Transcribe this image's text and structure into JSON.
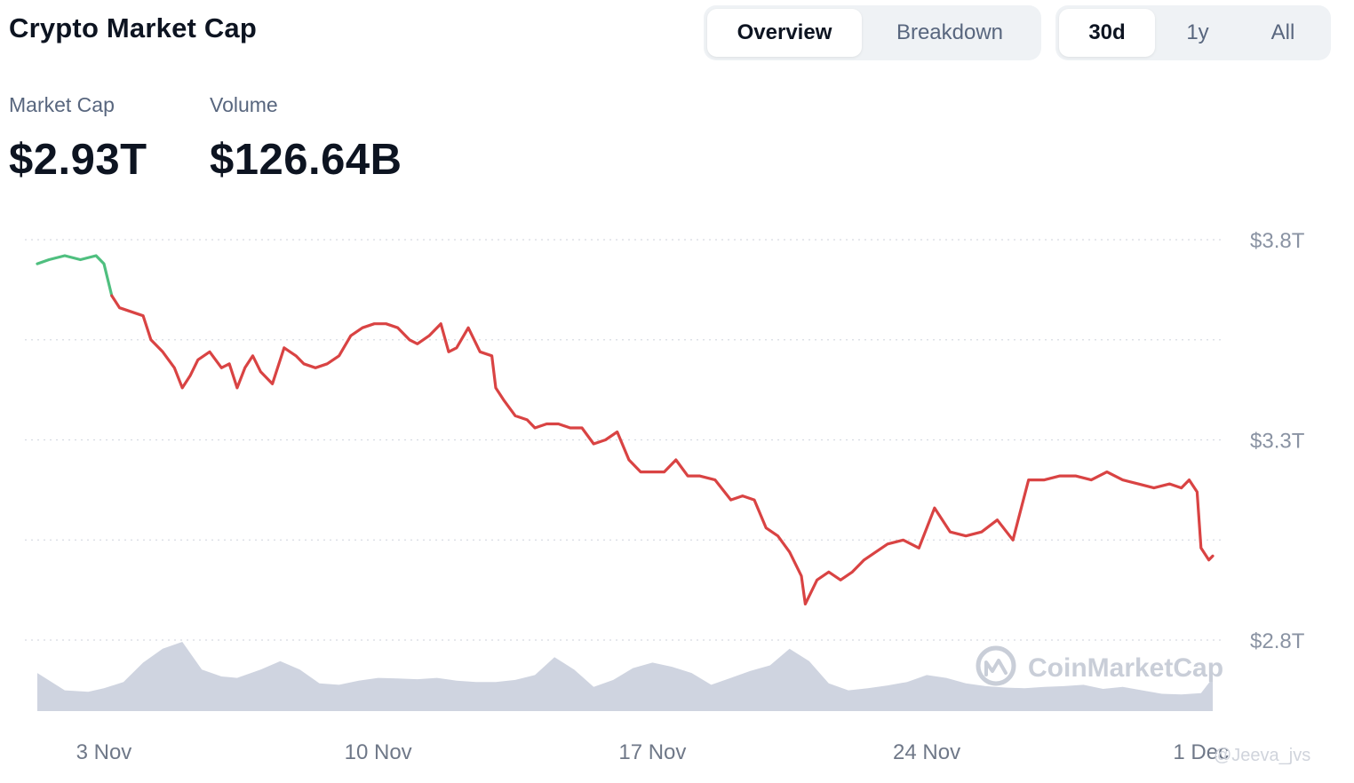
{
  "header": {
    "title": "Crypto Market Cap",
    "view_tabs": [
      "Overview",
      "Breakdown"
    ],
    "active_view": "Overview",
    "range_tabs": [
      "30d",
      "1y",
      "All"
    ],
    "active_range": "30d"
  },
  "stats": {
    "market_cap_label": "Market Cap",
    "market_cap_value": "$2.93T",
    "volume_label": "Volume",
    "volume_value": "$126.64B"
  },
  "watermark": "CoinMarketCap",
  "handle": "@Jeeva_jvs",
  "colors": {
    "up": "#4fbf7f",
    "down": "#d94343",
    "volume": "#cfd4e0",
    "grid": "#d7dbe2"
  },
  "chart_data": {
    "type": "line",
    "ylabel_ticks": [
      "$3.8T",
      "$3.3T",
      "$2.8T"
    ],
    "yticks_values": [
      3.8,
      3.55,
      3.3,
      3.05,
      2.8
    ],
    "ylim": [
      2.8,
      3.8
    ],
    "x_ticks": [
      "3 Nov",
      "10 Nov",
      "17 Nov",
      "24 Nov",
      "1 Dec"
    ],
    "x_ticks_values": [
      3,
      10,
      17,
      24,
      31
    ],
    "xlim": [
      1.3,
      31.3
    ],
    "grid": true,
    "series": [
      {
        "role": "market_cap",
        "unit": "trillion USD",
        "x": [
          1.3,
          1.6,
          2.0,
          2.4,
          2.8,
          3.0,
          3.2,
          3.4,
          3.7,
          4.0,
          4.2,
          4.5,
          4.8,
          5.0,
          5.2,
          5.4,
          5.7,
          6.0,
          6.2,
          6.4,
          6.6,
          6.8,
          7.0,
          7.3,
          7.6,
          7.9,
          8.1,
          8.4,
          8.7,
          9.0,
          9.3,
          9.6,
          9.9,
          10.2,
          10.5,
          10.8,
          11.0,
          11.3,
          11.6,
          11.8,
          12.0,
          12.3,
          12.6,
          12.9,
          13.0,
          13.2,
          13.5,
          13.8,
          14.0,
          14.3,
          14.6,
          14.9,
          15.2,
          15.5,
          15.8,
          16.1,
          16.4,
          16.7,
          17.0,
          17.3,
          17.6,
          17.9,
          18.2,
          18.6,
          19.0,
          19.3,
          19.6,
          19.9,
          20.2,
          20.5,
          20.8,
          20.9,
          21.2,
          21.5,
          21.8,
          22.1,
          22.4,
          22.7,
          23.0,
          23.4,
          23.8,
          24.2,
          24.6,
          25.0,
          25.4,
          25.8,
          26.2,
          26.6,
          27.0,
          27.4,
          27.8,
          28.2,
          28.6,
          29.0,
          29.4,
          29.8,
          30.2,
          30.5,
          30.7,
          30.9,
          31.0,
          31.2,
          31.3
        ],
        "y": [
          3.74,
          3.75,
          3.76,
          3.75,
          3.76,
          3.74,
          3.66,
          3.63,
          3.62,
          3.61,
          3.55,
          3.52,
          3.48,
          3.43,
          3.46,
          3.5,
          3.52,
          3.48,
          3.49,
          3.43,
          3.48,
          3.51,
          3.47,
          3.44,
          3.53,
          3.51,
          3.49,
          3.48,
          3.49,
          3.51,
          3.56,
          3.58,
          3.59,
          3.59,
          3.58,
          3.55,
          3.54,
          3.56,
          3.59,
          3.52,
          3.53,
          3.58,
          3.52,
          3.51,
          3.43,
          3.4,
          3.36,
          3.35,
          3.33,
          3.34,
          3.34,
          3.33,
          3.33,
          3.29,
          3.3,
          3.32,
          3.25,
          3.22,
          3.22,
          3.22,
          3.25,
          3.21,
          3.21,
          3.2,
          3.15,
          3.16,
          3.15,
          3.08,
          3.06,
          3.02,
          2.96,
          2.89,
          2.95,
          2.97,
          2.95,
          2.97,
          3.0,
          3.02,
          3.04,
          3.05,
          3.03,
          3.13,
          3.07,
          3.06,
          3.07,
          3.1,
          3.05,
          3.2,
          3.2,
          3.21,
          3.21,
          3.2,
          3.22,
          3.2,
          3.19,
          3.18,
          3.19,
          3.18,
          3.2,
          3.17,
          3.03,
          3.0,
          3.01
        ]
      },
      {
        "role": "volume",
        "x": [
          1.3,
          2.0,
          2.6,
          3.0,
          3.5,
          4.0,
          4.5,
          5.0,
          5.5,
          6.0,
          6.4,
          7.0,
          7.5,
          8.0,
          8.5,
          9.0,
          9.5,
          10.0,
          10.5,
          11.0,
          11.5,
          12.0,
          12.5,
          13.0,
          13.5,
          14.0,
          14.5,
          15.0,
          15.5,
          16.0,
          16.5,
          17.0,
          17.5,
          18.0,
          18.5,
          19.0,
          19.5,
          20.0,
          20.5,
          21.0,
          21.5,
          22.0,
          22.5,
          23.0,
          23.5,
          24.0,
          24.5,
          25.0,
          25.5,
          26.0,
          26.5,
          27.0,
          27.5,
          28.0,
          28.5,
          29.0,
          29.5,
          30.0,
          30.5,
          31.0,
          31.3
        ],
        "y": [
          0.55,
          0.3,
          0.28,
          0.33,
          0.42,
          0.7,
          0.9,
          1.0,
          0.6,
          0.5,
          0.48,
          0.6,
          0.72,
          0.6,
          0.4,
          0.38,
          0.44,
          0.48,
          0.47,
          0.46,
          0.48,
          0.44,
          0.42,
          0.42,
          0.45,
          0.52,
          0.78,
          0.6,
          0.35,
          0.45,
          0.62,
          0.7,
          0.64,
          0.55,
          0.38,
          0.48,
          0.58,
          0.66,
          0.9,
          0.72,
          0.4,
          0.3,
          0.33,
          0.37,
          0.42,
          0.52,
          0.48,
          0.4,
          0.36,
          0.34,
          0.33,
          0.35,
          0.36,
          0.38,
          0.32,
          0.35,
          0.3,
          0.25,
          0.24,
          0.26,
          0.48
        ]
      }
    ]
  }
}
